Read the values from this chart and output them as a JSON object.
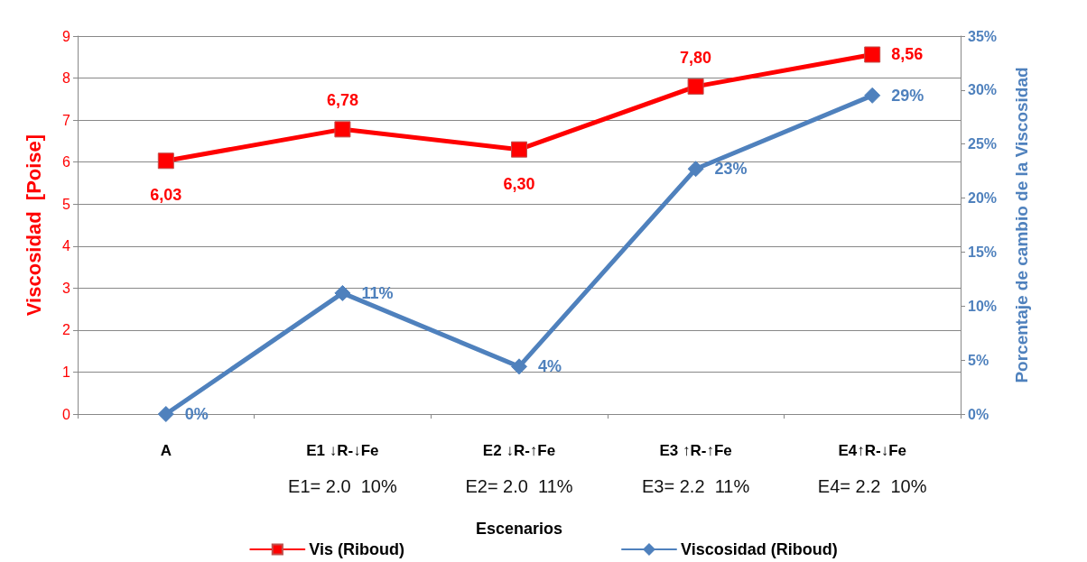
{
  "chart_data": {
    "type": "line",
    "xlabel": "Escenarios",
    "ylabel": "Viscosidad  [Poise]",
    "y2label": "Porcentaje de cambio de la Viscosidad",
    "categories": [
      "A",
      "E1 ↓R-↓Fe\nE1= 2.0  10%",
      "E2 ↓R-↑Fe\nE2= 2.0  11%",
      "E3 ↑R-↑Fe\nE3= 2.2  11%",
      "E4↑R-↓Fe\nE4= 2.2  10%"
    ],
    "series": [
      {
        "name": "Vis (Riboud)",
        "color": "#ff0000",
        "marker": "square",
        "values": [
          6.03,
          6.78,
          6.3,
          7.8,
          8.56
        ],
        "value_labels": [
          "6,03",
          "6,78",
          "6,30",
          "7,80",
          "8,56"
        ]
      },
      {
        "name": "Viscosidad (Riboud)",
        "color": "#4f81bd",
        "marker": "diamond",
        "axis": "y2",
        "values": [
          0,
          11.2,
          4.4,
          22.7,
          29.5
        ],
        "value_labels": [
          "0%",
          "11%",
          "4%",
          "23%",
          "29%"
        ]
      }
    ],
    "ylim": [
      0,
      9
    ],
    "yticks": [
      0,
      1,
      2,
      3,
      4,
      5,
      6,
      7,
      8,
      9
    ],
    "y2lim": [
      0,
      35
    ],
    "y2ticks": [
      {
        "value": 0,
        "label": "0%"
      },
      {
        "value": 5,
        "label": "5%"
      },
      {
        "value": 10,
        "label": "10%"
      },
      {
        "value": 15,
        "label": "15%"
      },
      {
        "value": 20,
        "label": "20%"
      },
      {
        "value": 25,
        "label": "25%"
      },
      {
        "value": 30,
        "label": "30%"
      },
      {
        "value": 35,
        "label": "35%"
      }
    ],
    "grid": "y",
    "legend": "bottom",
    "line_style": "solid"
  }
}
